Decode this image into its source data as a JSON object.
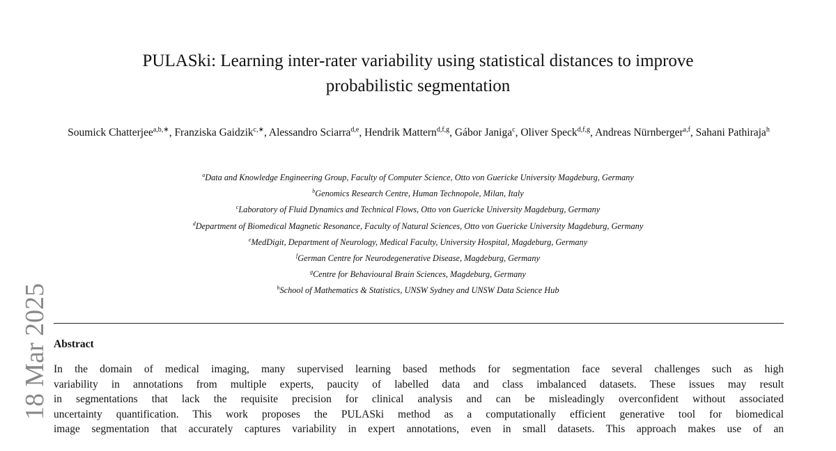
{
  "side_label": "18 Mar 2025",
  "title": {
    "lines": [
      "PULASki: Learning inter-rater variability using statistical distances to improve",
      "probabilistic segmentation"
    ]
  },
  "authors": [
    {
      "name": "Soumick Chatterjee",
      "sup": "a,b,∗",
      "sep": ","
    },
    {
      "name": "Franziska Gaidzik",
      "sup": "c,∗",
      "sep": ","
    },
    {
      "name": "Alessandro Sciarra",
      "sup": "d,e",
      "sep": ","
    },
    {
      "name": "Hendrik Mattern",
      "sup": "d,f,g",
      "sep": ","
    },
    {
      "name": "Gábor Janiga",
      "sup": "c",
      "sep": ","
    },
    {
      "name": "Oliver Speck",
      "sup": "d,f,g",
      "sep": ","
    },
    {
      "name": "Andreas Nürnberger",
      "sup": "a,f",
      "sep": ","
    },
    {
      "name": "Sahani Pathiraja",
      "sup": "h"
    }
  ],
  "affiliations": [
    {
      "mark": "a",
      "text": "Data and Knowledge Engineering Group, Faculty of Computer Science, Otto von Guericke University Magdeburg, Germany"
    },
    {
      "mark": "b",
      "text": "Genomics Research Centre, Human Technopole, Milan, Italy"
    },
    {
      "mark": "c",
      "text": "Laboratory of Fluid Dynamics and Technical Flows, Otto von Guericke University Magdeburg, Germany"
    },
    {
      "mark": "d",
      "text": "Department of Biomedical Magnetic Resonance, Faculty of Natural Sciences, Otto von Guericke University Magdeburg, Germany"
    },
    {
      "mark": "e",
      "text": "MedDigit, Department of Neurology, Medical Faculty, University Hospital, Magdeburg, Germany"
    },
    {
      "mark": "f",
      "text": "German Centre for Neurodegenerative Disease, Magdeburg, Germany"
    },
    {
      "mark": "g",
      "text": "Centre for Behavioural Brain Sciences, Magdeburg, Germany"
    },
    {
      "mark": "h",
      "text": "School of Mathematics & Statistics, UNSW Sydney and UNSW Data Science Hub"
    }
  ],
  "abstract": {
    "heading": "Abstract",
    "lines": [
      "In the domain of medical imaging, many supervised learning based methods for segmentation face several challenges such as high",
      "variability in annotations from multiple experts, paucity of labelled data and class imbalanced datasets. These issues may result",
      "in segmentations that lack the requisite precision for clinical analysis and can be misleadingly overconfident without associated",
      "uncertainty quantification. This work proposes the PULASki method as a computationally efficient generative tool for biomedical",
      "image segmentation that accurately captures variability in expert annotations, even in small datasets. This approach makes use of an"
    ]
  }
}
